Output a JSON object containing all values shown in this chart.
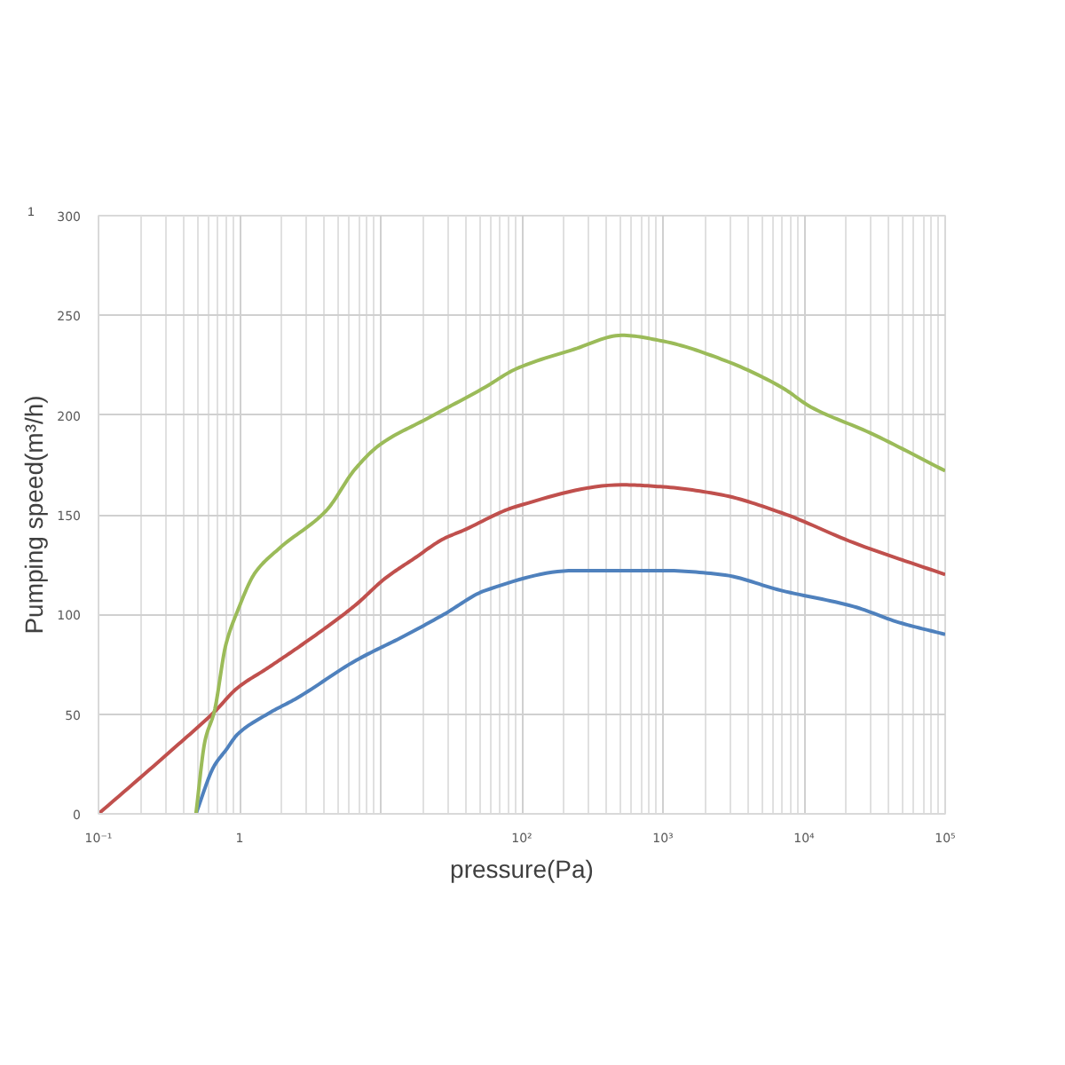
{
  "chart_data": {
    "type": "line",
    "xlabel": "pressure(Pa)",
    "ylabel": "Pumping speed(m³/h)",
    "log": "x",
    "xlim": [
      0.1,
      100000
    ],
    "ylim": [
      0,
      300
    ],
    "xticks": [
      {
        "value": 0.1,
        "label": "10⁻¹"
      },
      1,
      {
        "value": 10,
        "label": null
      },
      {
        "value": 100,
        "label": "10²"
      },
      {
        "value": 1000,
        "label": "10³"
      },
      {
        "value": 10000,
        "label": "10⁴"
      },
      {
        "value": 100000,
        "label": "10⁵"
      }
    ],
    "yticks": [
      0,
      50,
      100,
      150,
      200,
      250,
      300
    ],
    "grid": true,
    "annotations": [
      "1"
    ],
    "series": [
      {
        "color": "#4f81bd",
        "x": [
          0.49,
          0.66,
          0.8,
          0.97,
          1.57,
          2.54,
          6.7,
          14.5,
          28,
          55,
          235,
          1000,
          2600,
          6900,
          22400,
          47000,
          100000
        ],
        "values": [
          0,
          24,
          32,
          40,
          50,
          58,
          77,
          89,
          100,
          112,
          122,
          122,
          120,
          112,
          104,
          96,
          90
        ]
      },
      {
        "color": "#c0504d",
        "x": [
          0.1,
          0.37,
          0.66,
          0.96,
          1.57,
          2.54,
          4.2,
          6.7,
          10.7,
          17.2,
          28,
          38,
          90,
          510,
          1000,
          2600,
          6900,
          22400,
          100000
        ],
        "values": [
          0,
          35,
          51,
          63,
          73,
          83,
          94,
          105,
          118,
          128,
          138,
          142,
          154,
          165,
          164,
          160,
          151,
          136,
          120
        ]
      },
      {
        "color": "#9bbb59",
        "x": [
          0.49,
          0.57,
          0.66,
          0.8,
          0.97,
          1.29,
          1.9,
          4.1,
          6.6,
          9.8,
          21,
          55,
          90,
          235,
          510,
          1010,
          2600,
          6900,
          11200,
          29500,
          100000
        ],
        "values": [
          0,
          37,
          51,
          85,
          102,
          121,
          133,
          152,
          173,
          185,
          198,
          214,
          223,
          233,
          240,
          237,
          228,
          214,
          204,
          191,
          172
        ]
      }
    ]
  }
}
